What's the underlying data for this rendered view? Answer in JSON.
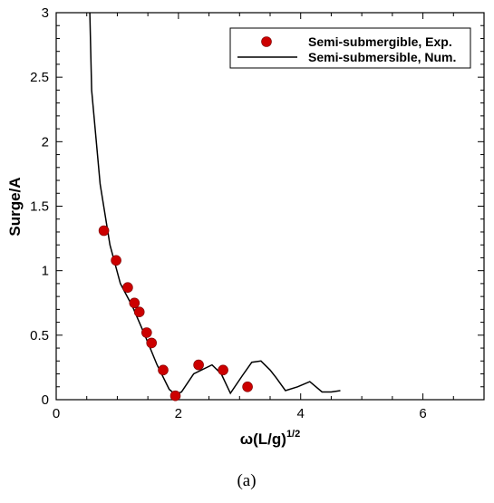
{
  "chart_data": {
    "type": "scatter",
    "xlim": [
      0,
      7
    ],
    "ylim": [
      0,
      3
    ],
    "x_ticks": [
      0,
      2,
      4,
      6
    ],
    "y_ticks": [
      0,
      0.5,
      1,
      1.5,
      2,
      2.5,
      3
    ],
    "x_tick_labels": [
      "0",
      "2",
      "4",
      "6"
    ],
    "y_tick_labels": [
      "0",
      "0.5",
      "1",
      "1.5",
      "2",
      "2.5",
      "3"
    ],
    "xlabel_main": "ω(L/g)",
    "xlabel_sup": "1/2",
    "ylabel": "Surge/A",
    "grid": false,
    "legend_position": "top-right",
    "series": [
      {
        "name": "Semi-submergible, Exp.",
        "kind": "markers",
        "color": "#cc0000",
        "x": [
          0.78,
          0.98,
          1.17,
          1.28,
          1.36,
          1.48,
          1.56,
          1.75,
          1.95,
          2.33,
          2.73,
          3.13
        ],
        "y": [
          1.31,
          1.08,
          0.87,
          0.75,
          0.68,
          0.52,
          0.44,
          0.23,
          0.03,
          0.27,
          0.23,
          0.1
        ]
      },
      {
        "name": "Semi-submersible, Num.",
        "kind": "line",
        "color": "#000000",
        "x": [
          0.55,
          0.58,
          0.72,
          0.88,
          1.05,
          1.25,
          1.45,
          1.65,
          1.85,
          1.95,
          2.05,
          2.25,
          2.55,
          2.7,
          2.85,
          3.05,
          3.2,
          3.35,
          3.5,
          3.6,
          3.75,
          3.95,
          4.15,
          4.35,
          4.5,
          4.65
        ],
        "y": [
          3.0,
          2.4,
          1.67,
          1.2,
          0.9,
          0.72,
          0.5,
          0.27,
          0.08,
          0.04,
          0.06,
          0.2,
          0.27,
          0.2,
          0.05,
          0.19,
          0.29,
          0.3,
          0.23,
          0.17,
          0.07,
          0.1,
          0.14,
          0.06,
          0.06,
          0.07
        ]
      }
    ]
  },
  "caption": "(a)"
}
